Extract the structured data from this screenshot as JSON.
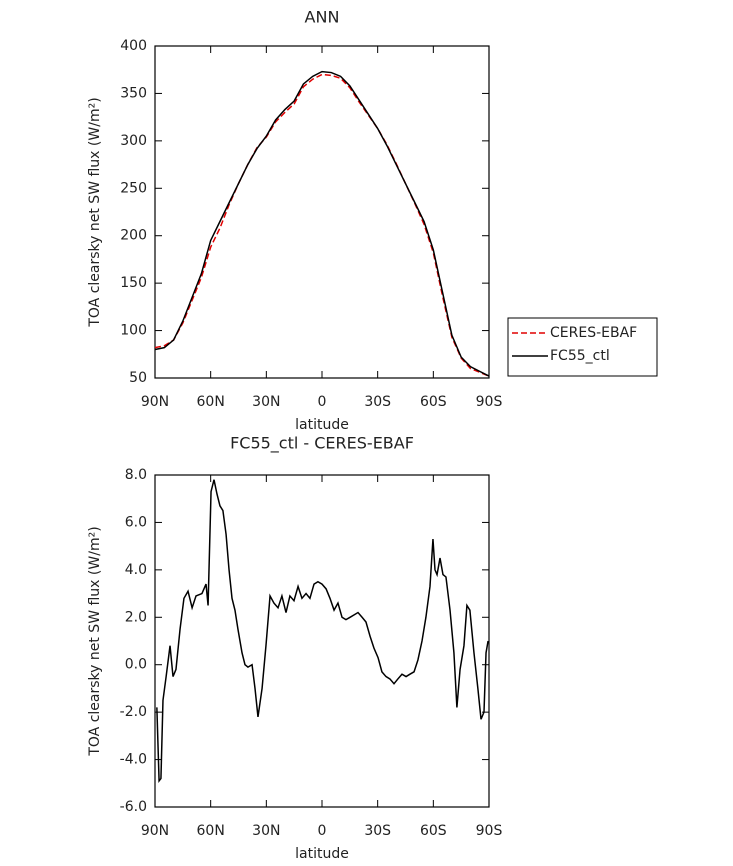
{
  "chart_data": [
    {
      "type": "line",
      "title": "ANN",
      "xlabel": "latitude",
      "ylabel": "TOA clearsky net SW flux (W/m²)",
      "x": [
        90,
        85,
        80,
        75,
        70,
        65,
        60,
        55,
        50,
        45,
        40,
        35,
        30,
        25,
        20,
        15,
        10,
        5,
        0,
        -5,
        -10,
        -15,
        -20,
        -25,
        -30,
        -35,
        -40,
        -45,
        -50,
        -55,
        -60,
        -65,
        -70,
        -75,
        -80,
        -85,
        -90
      ],
      "series": [
        {
          "name": "CERES-EBAF",
          "color": "#e00000",
          "line_style": "dashed",
          "values": [
            82,
            84,
            90,
            108,
            132,
            156,
            188,
            208,
            233,
            255,
            275,
            293,
            304,
            320,
            330,
            339,
            357,
            365,
            370,
            369,
            366,
            356,
            341,
            327,
            313,
            296,
            276,
            255,
            234,
            212,
            182,
            136,
            93,
            71,
            60,
            56,
            52
          ]
        },
        {
          "name": "FC55_ctl",
          "color": "#000000",
          "line_style": "solid",
          "values": [
            80,
            82,
            90,
            110,
            135,
            160,
            195,
            215,
            235,
            255,
            275,
            292,
            305,
            322,
            333,
            342,
            360,
            368,
            373,
            372,
            368,
            358,
            343,
            328,
            313,
            295,
            275,
            255,
            235,
            215,
            185,
            140,
            95,
            72,
            62,
            57,
            52
          ]
        }
      ],
      "xlim": [
        90,
        -90
      ],
      "xticks": [
        {
          "value": 90,
          "label": "90N"
        },
        {
          "value": 60,
          "label": "60N"
        },
        {
          "value": 30,
          "label": "30N"
        },
        0,
        {
          "value": -30,
          "label": "30S"
        },
        {
          "value": -60,
          "label": "60S"
        },
        {
          "value": -90,
          "label": "90S"
        }
      ],
      "ylim": [
        50,
        400
      ],
      "yticks": [
        50,
        100,
        150,
        200,
        250,
        300,
        350,
        400
      ],
      "legend": "right",
      "grid": false
    },
    {
      "type": "line",
      "title": "FC55_ctl - CERES-EBAF",
      "xlabel": "latitude",
      "ylabel": "TOA clearsky net SW flux (W/m²)",
      "color": "#000000",
      "x": [
        89,
        87.8,
        86.8,
        85.7,
        84,
        81.9,
        80.3,
        78.7,
        76.5,
        74.4,
        72.2,
        70,
        67.9,
        64.7,
        62.5,
        61.4,
        59.8,
        58.2,
        56.6,
        55,
        53.4,
        51.7,
        50.1,
        48.5,
        46.9,
        45.3,
        43.1,
        41.5,
        39.9,
        37.7,
        36.1,
        34.5,
        32.3,
        30.2,
        28,
        25.9,
        23.7,
        21.6,
        19.4,
        17.3,
        15.1,
        12.9,
        10.8,
        8.6,
        6.5,
        4.3,
        2.2,
        0,
        -2.2,
        -4.3,
        -6.5,
        -8.6,
        -10.8,
        -12.9,
        -15.1,
        -17.3,
        -19.4,
        -21.6,
        -23.7,
        -25.9,
        -28,
        -30.2,
        -32.3,
        -34.5,
        -36.6,
        -38.8,
        -40.9,
        -43.1,
        -45.3,
        -47.4,
        -49.6,
        -51.7,
        -53.9,
        -56,
        -58.2,
        -59.8,
        -60.9,
        -62,
        -63.6,
        -65.2,
        -66.8,
        -69,
        -71.1,
        -72.7,
        -74.4,
        -76.5,
        -78.1,
        -79.7,
        -81.9,
        -84,
        -85.7,
        -87.3,
        -88.4,
        -89.5
      ],
      "values": [
        -1.8,
        -4.9,
        -4.8,
        -1.5,
        -0.5,
        0.8,
        -0.5,
        -0.2,
        1.5,
        2.8,
        3.1,
        2.4,
        2.9,
        3.0,
        3.4,
        2.5,
        7.3,
        7.8,
        7.2,
        6.7,
        6.5,
        5.5,
        4.0,
        2.8,
        2.3,
        1.5,
        0.5,
        0,
        -0.1,
        0,
        -1.0,
        -2.2,
        -1.0,
        0.8,
        2.9,
        2.6,
        2.4,
        2.9,
        2.2,
        2.9,
        2.7,
        3.3,
        2.8,
        3.0,
        2.8,
        3.4,
        3.5,
        3.4,
        3.2,
        2.8,
        2.3,
        2.6,
        2.0,
        1.9,
        2.0,
        2.1,
        2.2,
        2.0,
        1.8,
        1.2,
        0.7,
        0.3,
        -0.3,
        -0.5,
        -0.6,
        -0.8,
        -0.6,
        -0.4,
        -0.5,
        -0.4,
        -0.3,
        0.2,
        1.0,
        2.0,
        3.3,
        5.3,
        4.0,
        3.8,
        4.5,
        3.8,
        3.7,
        2.3,
        0.5,
        -1.8,
        -0.2,
        0.8,
        2.5,
        2.3,
        0.5,
        -1.0,
        -2.3,
        -2.0,
        0.5,
        1.0
      ],
      "xlim": [
        90,
        -90
      ],
      "xticks": [
        {
          "value": 90,
          "label": "90N"
        },
        {
          "value": 60,
          "label": "60N"
        },
        {
          "value": 30,
          "label": "30N"
        },
        0,
        {
          "value": -30,
          "label": "30S"
        },
        {
          "value": -60,
          "label": "60S"
        },
        {
          "value": -90,
          "label": "90S"
        }
      ],
      "ylim": [
        -6,
        8
      ],
      "yticks": [
        {
          "value": -6,
          "label": "-6.0"
        },
        {
          "value": -4,
          "label": "-4.0"
        },
        {
          "value": -2,
          "label": "-2.0"
        },
        {
          "value": 0,
          "label": "0.0"
        },
        {
          "value": 2,
          "label": "2.0"
        },
        {
          "value": 4,
          "label": "4.0"
        },
        {
          "value": 6,
          "label": "6.0"
        },
        {
          "value": 8,
          "label": "8.0"
        }
      ],
      "grid": false
    }
  ]
}
